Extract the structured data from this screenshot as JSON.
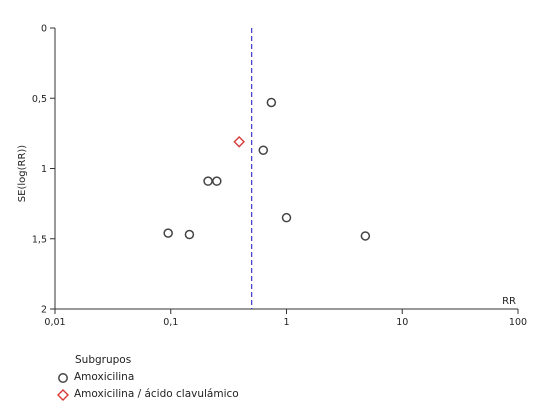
{
  "chart_data": {
    "type": "scatter",
    "title": "",
    "xlabel": "RR",
    "ylabel": "SE(log(RR))",
    "x_scale": "log",
    "xlim": [
      0.01,
      100
    ],
    "ylim": [
      0,
      2
    ],
    "y_inverted": true,
    "x_ticks": [
      "0,01",
      "0,1",
      "1",
      "10",
      "100"
    ],
    "y_ticks": [
      "0",
      "0,5",
      "1",
      "1,5",
      "2"
    ],
    "reference_line": {
      "x": 0.5,
      "style": "dashed",
      "color": "#3b3bd0"
    },
    "series": [
      {
        "name": "Amoxicilina",
        "marker": "circle",
        "color": "#444444",
        "points": [
          {
            "x": 0.74,
            "y": 0.53
          },
          {
            "x": 0.63,
            "y": 0.87
          },
          {
            "x": 0.21,
            "y": 1.09
          },
          {
            "x": 0.25,
            "y": 1.09
          },
          {
            "x": 1.0,
            "y": 1.35
          },
          {
            "x": 0.095,
            "y": 1.46
          },
          {
            "x": 0.145,
            "y": 1.47
          },
          {
            "x": 4.8,
            "y": 1.48
          }
        ]
      },
      {
        "name": "Amoxicilina / ácido clavulámico",
        "marker": "diamond",
        "color": "#d83a3a",
        "points": [
          {
            "x": 0.39,
            "y": 0.81
          }
        ]
      }
    ],
    "legend": {
      "title": "Subgrupos",
      "position": "bottom-left"
    }
  }
}
